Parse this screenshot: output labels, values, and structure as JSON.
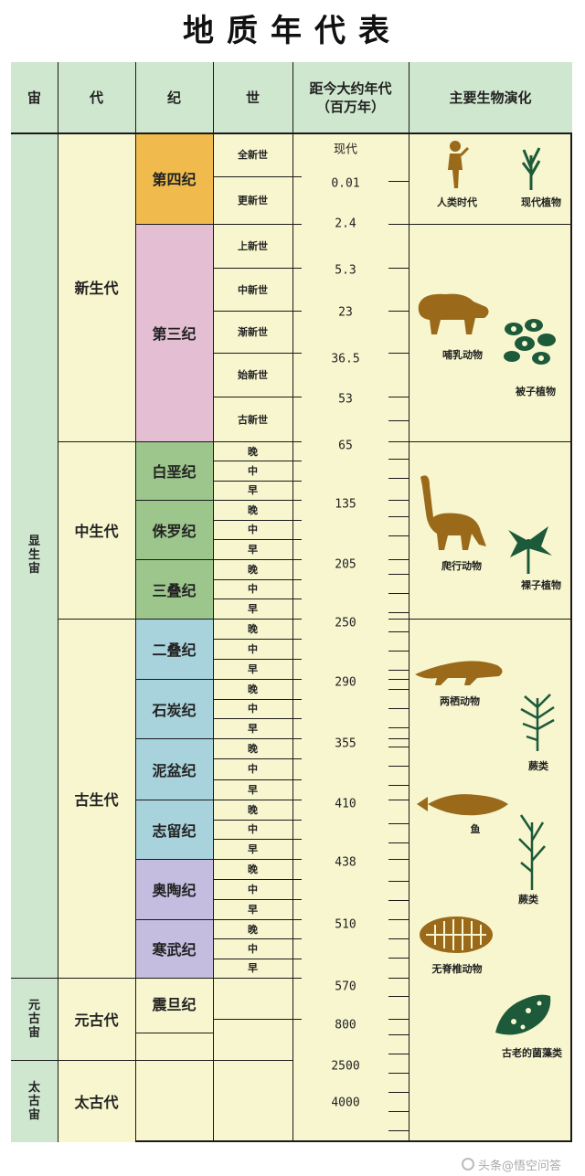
{
  "title": "地质年代表",
  "headers": {
    "eon": "宙",
    "era": "代",
    "period": "纪",
    "epoch": "世",
    "age_line1": "距今大约年代",
    "age_line2": "（百万年）",
    "life": "主要生物演化"
  },
  "eons": [
    {
      "name": "显生宙"
    },
    {
      "name": "元古宙"
    },
    {
      "name": "太古宙"
    }
  ],
  "eras": [
    {
      "name": "新生代"
    },
    {
      "name": "中生代"
    },
    {
      "name": "古生代"
    },
    {
      "name": "元古代"
    },
    {
      "name": "太古代"
    }
  ],
  "periods": [
    {
      "name": "第四纪",
      "color": "#f0bb4c"
    },
    {
      "name": "第三纪",
      "color": "#e4bfd3"
    },
    {
      "name": "白垩纪",
      "color": "#9cc68c"
    },
    {
      "name": "侏罗纪",
      "color": "#9cc68c"
    },
    {
      "name": "三叠纪",
      "color": "#9cc68c"
    },
    {
      "name": "二叠纪",
      "color": "#a8d2dc"
    },
    {
      "name": "石炭纪",
      "color": "#a8d2dc"
    },
    {
      "name": "泥盆纪",
      "color": "#a8d2dc"
    },
    {
      "name": "志留纪",
      "color": "#a8d2dc"
    },
    {
      "name": "奥陶纪",
      "color": "#c4bde0"
    },
    {
      "name": "寒武纪",
      "color": "#c4bde0"
    },
    {
      "name": "震旦纪",
      "color": "#f7f6cf"
    }
  ],
  "cenozoic_epochs": [
    "全新世",
    "更新世",
    "上新世",
    "中新世",
    "渐新世",
    "始新世",
    "古新世"
  ],
  "subdivisions": [
    "晚",
    "中",
    "早"
  ],
  "ages": [
    "现代",
    "0.01",
    "2.4",
    "5.3",
    "23",
    "36.5",
    "53",
    "65",
    "135",
    "205",
    "250",
    "290",
    "355",
    "410",
    "438",
    "510",
    "570",
    "800",
    "2500",
    "4000"
  ],
  "life": [
    {
      "label": "人类时代"
    },
    {
      "label": "现代植物"
    },
    {
      "label": "哺乳动物"
    },
    {
      "label": "被子植物"
    },
    {
      "label": "爬行动物"
    },
    {
      "label": "裸子植物"
    },
    {
      "label": "两栖动物"
    },
    {
      "label": "蕨类"
    },
    {
      "label": "鱼"
    },
    {
      "label": "蕨类"
    },
    {
      "label": "无脊椎动物"
    },
    {
      "label": "古老的菌藻类"
    }
  ],
  "colors": {
    "header_bg": "#cfe7cf",
    "body_bg": "#f7f6cf",
    "animal": "#9a6a1a",
    "plant": "#1c5a3a"
  },
  "watermark": "头条@悟空问答"
}
